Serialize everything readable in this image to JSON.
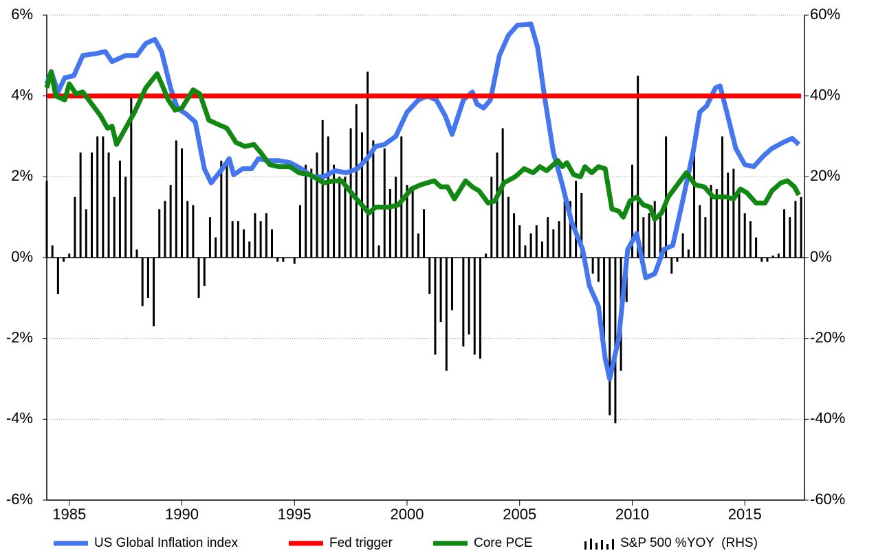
{
  "chart_data": {
    "type": "combo",
    "xlim": [
      1984,
      2017.65
    ],
    "xticks": [
      1985,
      1990,
      1995,
      2000,
      2005,
      2010,
      2015
    ],
    "ylim": [
      -6,
      6
    ],
    "yticks": [
      {
        "value": -6,
        "label": "-6%"
      },
      {
        "value": -4,
        "label": "-4%"
      },
      {
        "value": -2,
        "label": "-2%"
      },
      {
        "value": 0,
        "label": "0%"
      },
      {
        "value": 2,
        "label": "2%"
      },
      {
        "value": 4,
        "label": "4%"
      },
      {
        "value": 6,
        "label": "6%"
      }
    ],
    "y2lim": [
      -60,
      60
    ],
    "y2ticks": [
      {
        "value": -60,
        "label": "-60%"
      },
      {
        "value": -40,
        "label": "-40%"
      },
      {
        "value": -20,
        "label": "-20%"
      },
      {
        "value": 0,
        "label": "0%"
      },
      {
        "value": 20,
        "label": "20%"
      },
      {
        "value": 40,
        "label": "40%"
      },
      {
        "value": 60,
        "label": "60%"
      }
    ],
    "grid": true,
    "legend": "bottom",
    "series": [
      {
        "name": "US Global Inflation index",
        "color": "#4477ee",
        "type": "line",
        "x": [
          1984.0,
          1984.2,
          1984.5,
          1984.8,
          1985.2,
          1985.6,
          1986.2,
          1986.6,
          1986.9,
          1987.5,
          1988.0,
          1988.4,
          1988.8,
          1989.1,
          1989.5,
          1989.8,
          1990.2,
          1990.6,
          1991.0,
          1991.3,
          1991.8,
          1992.1,
          1992.3,
          1992.7,
          1993.1,
          1993.4,
          1993.8,
          1994.3,
          1994.8,
          1995.3,
          1995.8,
          1996.3,
          1996.8,
          1997.3,
          1997.8,
          1998.3,
          1998.6,
          1999.0,
          1999.5,
          2000.0,
          2000.5,
          2000.9,
          2001.3,
          2001.7,
          2002.0,
          2002.5,
          2002.9,
          2003.1,
          2003.4,
          2003.7,
          2004.1,
          2004.5,
          2004.9,
          2005.5,
          2005.8,
          2006.1,
          2006.5,
          2006.9,
          2007.3,
          2007.8,
          2008.1,
          2008.5,
          2008.8,
          2009.0,
          2009.4,
          2009.8,
          2010.2,
          2010.6,
          2011.0,
          2011.4,
          2011.8,
          2012.2,
          2012.7,
          2013.0,
          2013.3,
          2013.7,
          2013.9,
          2014.2,
          2014.6,
          2015.0,
          2015.4,
          2015.8,
          2016.2,
          2016.7,
          2017.1,
          2017.4
        ],
        "values": [
          4.3,
          4.6,
          4.1,
          4.45,
          4.5,
          5.0,
          5.05,
          5.1,
          4.85,
          5.0,
          5.0,
          5.3,
          5.4,
          5.1,
          4.2,
          3.7,
          3.55,
          3.35,
          2.2,
          1.85,
          2.2,
          2.45,
          2.05,
          2.2,
          2.2,
          2.45,
          2.4,
          2.4,
          2.35,
          2.2,
          2.0,
          2.0,
          2.15,
          2.1,
          2.2,
          2.5,
          2.75,
          2.8,
          3.0,
          3.6,
          3.9,
          4.0,
          3.9,
          3.5,
          3.05,
          3.9,
          4.1,
          3.8,
          3.7,
          3.9,
          5.0,
          5.5,
          5.75,
          5.78,
          5.2,
          4.0,
          2.6,
          1.8,
          0.9,
          0.2,
          -0.7,
          -1.2,
          -2.5,
          -3.0,
          -2.0,
          0.2,
          0.6,
          -0.5,
          -0.4,
          0.2,
          0.3,
          1.3,
          2.6,
          3.6,
          3.75,
          4.2,
          4.25,
          3.6,
          2.7,
          2.3,
          2.25,
          2.5,
          2.7,
          2.85,
          2.95,
          2.8
        ]
      },
      {
        "name": "Fed trigger",
        "color": "#ff0000",
        "type": "line",
        "x": [
          1984.0,
          2017.5
        ],
        "values": [
          4,
          4
        ]
      },
      {
        "name": "Core PCE",
        "color": "#118811",
        "type": "line",
        "x": [
          1984.0,
          1984.2,
          1984.4,
          1984.8,
          1985.0,
          1985.3,
          1985.6,
          1986.0,
          1986.4,
          1986.7,
          1986.9,
          1987.1,
          1987.5,
          1987.9,
          1988.4,
          1988.9,
          1989.1,
          1989.4,
          1989.7,
          1990.0,
          1990.5,
          1990.8,
          1991.2,
          1991.6,
          1992.0,
          1992.4,
          1992.8,
          1993.2,
          1993.5,
          1993.9,
          1994.3,
          1994.8,
          1995.2,
          1995.7,
          1996.3,
          1996.8,
          1997.1,
          1997.6,
          1998.0,
          1998.3,
          1998.6,
          1999.2,
          1999.6,
          2000.2,
          2000.6,
          2001.2,
          2001.5,
          2001.8,
          2002.1,
          2002.6,
          2002.9,
          2003.2,
          2003.6,
          2003.9,
          2004.3,
          2004.8,
          2005.2,
          2005.6,
          2005.9,
          2006.2,
          2006.7,
          2006.9,
          2007.1,
          2007.4,
          2007.7,
          2007.9,
          2008.2,
          2008.5,
          2008.8,
          2009.1,
          2009.4,
          2009.6,
          2009.9,
          2010.2,
          2010.5,
          2010.8,
          2011.0,
          2011.3,
          2011.6,
          2012.0,
          2012.4,
          2012.8,
          2013.2,
          2013.6,
          2014.2,
          2014.5,
          2014.8,
          2015.1,
          2015.5,
          2015.9,
          2016.2,
          2016.6,
          2016.9,
          2017.2,
          2017.4
        ],
        "values": [
          4.2,
          4.6,
          4.0,
          3.9,
          4.3,
          4.05,
          4.1,
          3.8,
          3.5,
          3.2,
          3.25,
          2.8,
          3.2,
          3.6,
          4.2,
          4.55,
          4.3,
          3.9,
          3.65,
          3.7,
          4.15,
          4.05,
          3.4,
          3.3,
          3.2,
          2.85,
          2.75,
          2.8,
          2.6,
          2.3,
          2.25,
          2.25,
          2.1,
          2.05,
          1.85,
          1.9,
          1.9,
          1.55,
          1.3,
          1.1,
          1.25,
          1.25,
          1.3,
          1.7,
          1.8,
          1.9,
          1.75,
          1.75,
          1.45,
          1.9,
          1.75,
          1.65,
          1.35,
          1.4,
          1.85,
          2.0,
          2.2,
          2.1,
          2.25,
          2.15,
          2.4,
          2.25,
          2.35,
          2.05,
          2.0,
          2.25,
          2.1,
          2.25,
          2.2,
          1.2,
          1.15,
          1.0,
          1.4,
          1.5,
          1.3,
          1.25,
          0.95,
          1.1,
          1.5,
          1.8,
          2.1,
          1.8,
          1.75,
          1.5,
          1.5,
          1.45,
          1.7,
          1.6,
          1.35,
          1.35,
          1.65,
          1.85,
          1.9,
          1.75,
          1.55
        ]
      },
      {
        "name": "S&P 500 %YOY  (RHS)",
        "color": "#000000",
        "type": "bar",
        "axis": "y2",
        "x": [
          1984.0,
          1984.25,
          1984.5,
          1984.75,
          1985.0,
          1985.25,
          1985.5,
          1985.75,
          1986.0,
          1986.25,
          1986.5,
          1986.75,
          1987.0,
          1987.25,
          1987.5,
          1987.75,
          1988.0,
          1988.25,
          1988.5,
          1988.75,
          1989.0,
          1989.25,
          1989.5,
          1989.75,
          1990.0,
          1990.25,
          1990.5,
          1990.75,
          1991.0,
          1991.25,
          1991.5,
          1991.75,
          1992.0,
          1992.25,
          1992.5,
          1992.75,
          1993.0,
          1993.25,
          1993.5,
          1993.75,
          1994.0,
          1994.25,
          1994.5,
          1994.75,
          1995.0,
          1995.25,
          1995.5,
          1995.75,
          1996.0,
          1996.25,
          1996.5,
          1996.75,
          1997.0,
          1997.25,
          1997.5,
          1997.75,
          1998.0,
          1998.25,
          1998.5,
          1998.75,
          1999.0,
          1999.25,
          1999.5,
          1999.75,
          2000.0,
          2000.25,
          2000.5,
          2000.75,
          2001.0,
          2001.25,
          2001.5,
          2001.75,
          2002.0,
          2002.25,
          2002.5,
          2002.75,
          2003.0,
          2003.25,
          2003.5,
          2003.75,
          2004.0,
          2004.25,
          2004.5,
          2004.75,
          2005.0,
          2005.25,
          2005.5,
          2005.75,
          2006.0,
          2006.25,
          2006.5,
          2006.75,
          2007.0,
          2007.25,
          2007.5,
          2007.75,
          2008.0,
          2008.25,
          2008.5,
          2008.75,
          2009.0,
          2009.25,
          2009.5,
          2009.75,
          2010.0,
          2010.25,
          2010.5,
          2010.75,
          2011.0,
          2011.25,
          2011.5,
          2011.75,
          2012.0,
          2012.25,
          2012.5,
          2012.75,
          2013.0,
          2013.25,
          2013.5,
          2013.75,
          2014.0,
          2014.25,
          2014.5,
          2014.75,
          2015.0,
          2015.25,
          2015.5,
          2015.75,
          2016.0,
          2016.25,
          2016.5,
          2016.75,
          2017.0,
          2017.25,
          2017.5
        ],
        "values": [
          19,
          3,
          -9,
          -1,
          1,
          15,
          26,
          12,
          26,
          30,
          30,
          26,
          15,
          24,
          20,
          40,
          2,
          -12,
          -10,
          -17,
          12,
          14,
          18,
          29,
          27,
          14,
          13,
          -10,
          -7,
          10,
          5,
          24,
          24,
          9,
          9,
          7,
          4,
          11,
          9,
          11,
          7,
          -1,
          -1,
          0,
          -1.5,
          13,
          23,
          22,
          26,
          34,
          30,
          23,
          20,
          20,
          32,
          38,
          31,
          46,
          29,
          3,
          27,
          17,
          20,
          30,
          18,
          17,
          6,
          12,
          -9,
          -24,
          -16,
          -28,
          -13,
          0,
          -22,
          -19,
          -24,
          -25,
          1,
          20,
          26,
          32,
          15,
          11,
          8,
          3,
          6,
          8,
          4,
          10,
          7,
          9,
          14,
          14,
          19,
          16,
          0,
          -4,
          -6,
          -20,
          -39,
          -41,
          -28,
          -11,
          23,
          45,
          10,
          11,
          14,
          11,
          30,
          -4,
          -1,
          6,
          2,
          26,
          13,
          10,
          18,
          17,
          30,
          21,
          22,
          17,
          11,
          9,
          5,
          -1,
          -1,
          0.5,
          1,
          12,
          10,
          14,
          15
        ]
      }
    ]
  }
}
